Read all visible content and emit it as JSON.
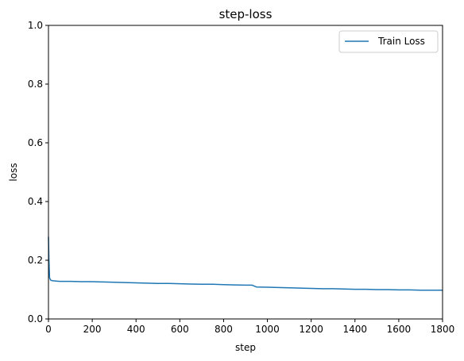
{
  "chart_data": {
    "type": "line",
    "title": "step-loss",
    "xlabel": "step",
    "ylabel": "loss",
    "xlim": [
      0,
      1800
    ],
    "ylim": [
      0,
      1.0
    ],
    "xticks": [
      0,
      200,
      400,
      600,
      800,
      1000,
      1200,
      1400,
      1600,
      1800
    ],
    "yticks": [
      0.0,
      0.2,
      0.4,
      0.6,
      0.8,
      1.0
    ],
    "ytick_labels": [
      "0.0",
      "0.2",
      "0.4",
      "0.6",
      "0.8",
      "1.0"
    ],
    "grid": false,
    "legend_position": "top-right",
    "series": [
      {
        "name": "Train Loss",
        "color": "#1f77b4",
        "x": [
          0,
          2,
          5,
          10,
          20,
          50,
          100,
          150,
          200,
          250,
          300,
          350,
          400,
          450,
          500,
          550,
          600,
          650,
          700,
          750,
          800,
          850,
          900,
          930,
          950,
          1000,
          1050,
          1100,
          1150,
          1200,
          1250,
          1300,
          1350,
          1400,
          1450,
          1500,
          1550,
          1600,
          1650,
          1700,
          1750,
          1800
        ],
        "y": [
          0.28,
          0.2,
          0.14,
          0.132,
          0.13,
          0.128,
          0.128,
          0.127,
          0.127,
          0.126,
          0.125,
          0.124,
          0.123,
          0.122,
          0.121,
          0.121,
          0.12,
          0.119,
          0.118,
          0.118,
          0.117,
          0.116,
          0.115,
          0.115,
          0.109,
          0.108,
          0.107,
          0.106,
          0.105,
          0.104,
          0.103,
          0.103,
          0.102,
          0.101,
          0.101,
          0.1,
          0.1,
          0.099,
          0.099,
          0.098,
          0.098,
          0.098
        ]
      }
    ]
  }
}
